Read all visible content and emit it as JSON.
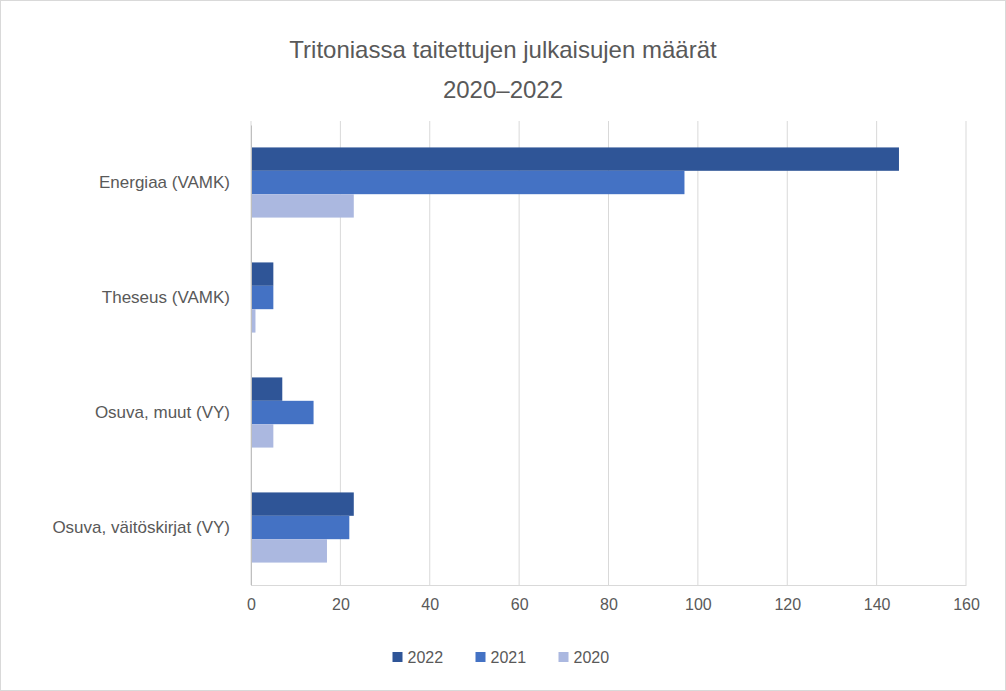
{
  "chart_data": {
    "type": "bar",
    "orientation": "horizontal",
    "title": "Tritoniassa taitettujen julkaisujen määrät",
    "subtitle": "2020–2022",
    "categories": [
      "Energiaa (VAMK)",
      "Theseus (VAMK)",
      "Osuva, muut (VY)",
      "Osuva, väitöskirjat (VY)"
    ],
    "series": [
      {
        "name": "2022",
        "color": "#2f5597",
        "values": [
          145,
          5,
          7,
          23
        ]
      },
      {
        "name": "2021",
        "color": "#4472c4",
        "values": [
          97,
          5,
          14,
          22
        ]
      },
      {
        "name": "2020",
        "color": "#abb8e0",
        "values": [
          23,
          1,
          5,
          17
        ]
      }
    ],
    "xlim": [
      0,
      160
    ],
    "xticks": [
      0,
      20,
      40,
      60,
      80,
      100,
      120,
      140,
      160
    ],
    "grid": true,
    "legend": "bottom"
  }
}
